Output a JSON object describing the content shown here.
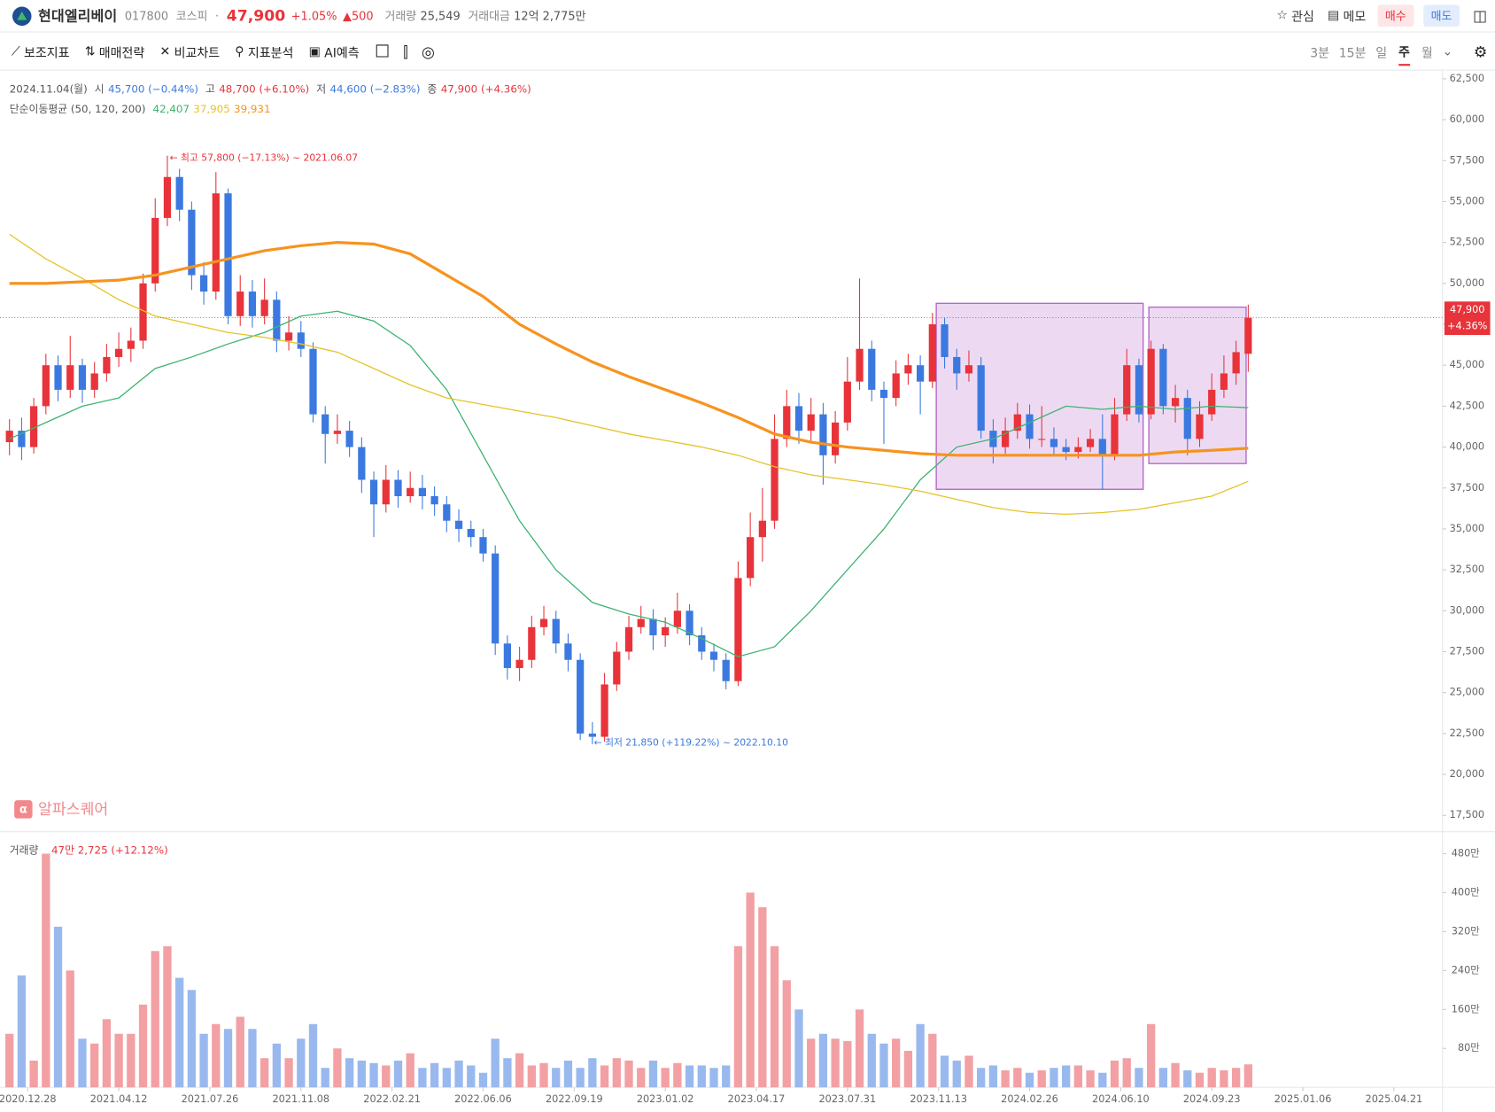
{
  "header": {
    "name": "현대엘리베이",
    "code": "017800",
    "market": "코스피",
    "price": "47,900",
    "change_pct": "+1.05%",
    "change": "▲500",
    "volume_label": "거래량",
    "volume": "25,549",
    "amount_label": "거래대금",
    "amount": "12억 2,775만",
    "actions": [
      "관심",
      "메모",
      "매수",
      "매도"
    ]
  },
  "toolbar": {
    "tools": [
      "보조지표",
      "매매전략",
      "비교차트",
      "지표분석",
      "AI예측"
    ],
    "periods": [
      "3분",
      "15분",
      "일",
      "주",
      "월"
    ]
  },
  "chart_data": {
    "type": "candlestick",
    "info": {
      "date": "2024.11.04(월)",
      "open_label": "시",
      "open": "45,700 (−0.44%)",
      "high_label": "고",
      "high": "48,700 (+6.10%)",
      "low_label": "저",
      "low": "44,600 (−2.83%)",
      "close_label": "종",
      "close": "47,900 (+4.36%)",
      "ma_label": "단순이동평균 (50, 120, 200)"
    },
    "annotations": {
      "max": "← 최고 57,800 (−17.13%) ~ 2021.06.07",
      "min": "← 최저 21,850 (+119.22%) ~ 2022.10.10",
      "watermark": "알파스퀘어"
    },
    "last_price_label": "47,900",
    "last_change_label": "+4.36%",
    "up_color": "#e8333a",
    "down_color": "#3b79e0",
    "grid": false,
    "xlim": [
      -0.78,
      118
    ],
    "xticks": [
      {
        "value": 1.5,
        "label": "2020.12.28"
      },
      {
        "value": 9,
        "label": "2021.04.12"
      },
      {
        "value": 16.5,
        "label": "2021.07.26"
      },
      {
        "value": 24,
        "label": "2021.11.08"
      },
      {
        "value": 31.5,
        "label": "2022.02.21"
      },
      {
        "value": 39,
        "label": "2022.06.06"
      },
      {
        "value": 46.5,
        "label": "2022.09.19"
      },
      {
        "value": 54,
        "label": "2023.01.02"
      },
      {
        "value": 61.5,
        "label": "2023.04.17"
      },
      {
        "value": 69,
        "label": "2023.07.31"
      },
      {
        "value": 76.5,
        "label": "2023.11.13"
      },
      {
        "value": 84,
        "label": "2024.02.26"
      },
      {
        "value": 91.5,
        "label": "2024.06.10"
      },
      {
        "value": 99,
        "label": "2024.09.23"
      },
      {
        "value": 106.5,
        "label": "2025.01.06"
      },
      {
        "value": 114,
        "label": "2025.04.21"
      }
    ],
    "ylim": [
      16500,
      63000
    ],
    "yticks": [
      {
        "value": 17500,
        "label": "17,500"
      },
      {
        "value": 20000,
        "label": "20,000"
      },
      {
        "value": 22500,
        "label": "22,500"
      },
      {
        "value": 25000,
        "label": "25,000"
      },
      {
        "value": 27500,
        "label": "27,500"
      },
      {
        "value": 30000,
        "label": "30,000"
      },
      {
        "value": 32500,
        "label": "32,500"
      },
      {
        "value": 35000,
        "label": "35,000"
      },
      {
        "value": 37500,
        "label": "37,500"
      },
      {
        "value": 40000,
        "label": "40,000"
      },
      {
        "value": 42500,
        "label": "42,500"
      },
      {
        "value": 45000,
        "label": "45,000"
      },
      {
        "value": 47500,
        "label": "47,500"
      },
      {
        "value": 50000,
        "label": "50,000"
      },
      {
        "value": 52500,
        "label": "52,500"
      },
      {
        "value": 55000,
        "label": "55,000"
      },
      {
        "value": 57500,
        "label": "57,500"
      },
      {
        "value": 60000,
        "label": "60,000"
      },
      {
        "value": 62500,
        "label": "62,500"
      }
    ],
    "candles": [
      [
        40300,
        41700,
        39500,
        41000
      ],
      [
        41000,
        41800,
        39200,
        40000
      ],
      [
        40000,
        43000,
        39600,
        42500
      ],
      [
        42500,
        45700,
        42000,
        45000
      ],
      [
        45000,
        45600,
        42800,
        43500
      ],
      [
        43500,
        46800,
        43000,
        45000
      ],
      [
        45000,
        45400,
        42700,
        43500
      ],
      [
        43500,
        45200,
        43000,
        44500
      ],
      [
        44500,
        46300,
        44000,
        45500
      ],
      [
        45500,
        47000,
        44900,
        46000
      ],
      [
        46000,
        47300,
        45200,
        46500
      ],
      [
        46500,
        50600,
        46000,
        50000
      ],
      [
        50000,
        55200,
        49500,
        54000
      ],
      [
        54000,
        57800,
        53500,
        56500
      ],
      [
        56500,
        57000,
        53800,
        54500
      ],
      [
        54500,
        55000,
        49600,
        50500
      ],
      [
        50500,
        51300,
        48700,
        49500
      ],
      [
        49500,
        56800,
        49000,
        55500
      ],
      [
        55500,
        55800,
        47500,
        48000
      ],
      [
        48000,
        50500,
        47400,
        49500
      ],
      [
        49500,
        50200,
        47300,
        48000
      ],
      [
        48000,
        50300,
        47500,
        49000
      ],
      [
        49000,
        49500,
        45800,
        46500
      ],
      [
        46500,
        48000,
        45900,
        47000
      ],
      [
        47000,
        47700,
        45500,
        46000
      ],
      [
        46000,
        46400,
        41500,
        42000
      ],
      [
        42000,
        42500,
        39000,
        40800
      ],
      [
        40800,
        42000,
        40200,
        41000
      ],
      [
        41000,
        41600,
        39400,
        40000
      ],
      [
        40000,
        40600,
        37200,
        38000
      ],
      [
        38000,
        38500,
        34500,
        36500
      ],
      [
        36500,
        38900,
        36000,
        38000
      ],
      [
        38000,
        38600,
        36300,
        37000
      ],
      [
        37000,
        38500,
        36600,
        37500
      ],
      [
        37500,
        38300,
        36200,
        37000
      ],
      [
        37000,
        37600,
        35800,
        36500
      ],
      [
        36500,
        37000,
        34800,
        35500
      ],
      [
        35500,
        36200,
        34200,
        35000
      ],
      [
        35000,
        35500,
        33900,
        34500
      ],
      [
        34500,
        35000,
        33000,
        33500
      ],
      [
        33500,
        34000,
        27300,
        28000
      ],
      [
        28000,
        28500,
        25800,
        26500
      ],
      [
        26500,
        27800,
        25700,
        27000
      ],
      [
        27000,
        29700,
        26500,
        29000
      ],
      [
        29000,
        30300,
        28500,
        29500
      ],
      [
        29500,
        30000,
        27400,
        28000
      ],
      [
        28000,
        28600,
        26300,
        27000
      ],
      [
        27000,
        27400,
        22100,
        22500
      ],
      [
        22500,
        23200,
        21850,
        22300
      ],
      [
        22300,
        26200,
        22000,
        25500
      ],
      [
        25500,
        28100,
        25100,
        27500
      ],
      [
        27500,
        29700,
        27000,
        29000
      ],
      [
        29000,
        30300,
        28600,
        29500
      ],
      [
        29500,
        30100,
        27600,
        28500
      ],
      [
        28500,
        29600,
        27800,
        29000
      ],
      [
        29000,
        31100,
        28600,
        30000
      ],
      [
        30000,
        30400,
        27900,
        28500
      ],
      [
        28500,
        29000,
        27000,
        27500
      ],
      [
        27500,
        28000,
        26300,
        27000
      ],
      [
        27000,
        27400,
        25200,
        25700
      ],
      [
        25700,
        33000,
        25400,
        32000
      ],
      [
        32000,
        36000,
        31500,
        34500
      ],
      [
        34500,
        37500,
        33000,
        35500
      ],
      [
        35500,
        42000,
        35000,
        40500
      ],
      [
        40500,
        43500,
        40000,
        42500
      ],
      [
        42500,
        43300,
        40200,
        41000
      ],
      [
        41000,
        43000,
        40300,
        42000
      ],
      [
        42000,
        42700,
        37700,
        39500
      ],
      [
        39500,
        42200,
        39000,
        41500
      ],
      [
        41500,
        45500,
        41000,
        44000
      ],
      [
        44000,
        50300,
        43500,
        46000
      ],
      [
        46000,
        46500,
        42800,
        43500
      ],
      [
        43500,
        44000,
        40200,
        43000
      ],
      [
        43000,
        45300,
        42500,
        44500
      ],
      [
        44500,
        45700,
        43800,
        45000
      ],
      [
        45000,
        45600,
        42000,
        44000
      ],
      [
        44000,
        48200,
        43600,
        47500
      ],
      [
        47500,
        47900,
        44800,
        45500
      ],
      [
        45500,
        46000,
        43500,
        44500
      ],
      [
        44500,
        45900,
        44000,
        45000
      ],
      [
        45000,
        45500,
        40500,
        41000
      ],
      [
        41000,
        41700,
        39000,
        40000
      ],
      [
        40000,
        41800,
        39600,
        41000
      ],
      [
        41000,
        42700,
        40500,
        42000
      ],
      [
        42000,
        42600,
        39900,
        40500
      ],
      [
        40500,
        42500,
        40000,
        40500
      ],
      [
        40500,
        41200,
        39500,
        40000
      ],
      [
        40000,
        40500,
        39200,
        39700
      ],
      [
        39700,
        40600,
        39300,
        40000
      ],
      [
        40000,
        41100,
        39700,
        40500
      ],
      [
        40500,
        42000,
        37400,
        39500
      ],
      [
        39500,
        43000,
        39200,
        42000
      ],
      [
        42000,
        46000,
        41600,
        45000
      ],
      [
        45000,
        45400,
        41500,
        42000
      ],
      [
        42000,
        46500,
        41700,
        46000
      ],
      [
        46000,
        46300,
        42000,
        42500
      ],
      [
        42500,
        43800,
        41500,
        43000
      ],
      [
        43000,
        43500,
        39500,
        40500
      ],
      [
        40500,
        42800,
        40000,
        42000
      ],
      [
        42000,
        44500,
        41600,
        43500
      ],
      [
        43500,
        45600,
        43000,
        44500
      ],
      [
        44500,
        46500,
        43800,
        45800
      ],
      [
        45700,
        48700,
        44600,
        47900
      ]
    ],
    "ma_series": [
      {
        "name": "50",
        "color": "#3cb371",
        "width": 1.2,
        "legend_label": "42,407",
        "x": [
          0,
          3,
          6,
          9,
          12,
          15,
          18,
          21,
          24,
          27,
          30,
          33,
          36,
          39,
          42,
          45,
          48,
          51,
          54,
          57,
          60,
          63,
          66,
          69,
          72,
          75,
          78,
          81,
          84,
          87,
          90,
          93,
          96,
          99,
          102
        ],
        "values": [
          40500,
          41500,
          42500,
          43000,
          44800,
          45500,
          46300,
          47000,
          48000,
          48300,
          47700,
          46200,
          43500,
          39500,
          35500,
          32500,
          30500,
          29800,
          29300,
          28300,
          27200,
          27800,
          30000,
          32500,
          35000,
          38000,
          40000,
          40500,
          41500,
          42500,
          42300,
          42500,
          42300,
          42500,
          42407
        ]
      },
      {
        "name": "120",
        "color": "#e6c229",
        "width": 1.2,
        "legend_label": "37,905",
        "x": [
          0,
          3,
          6,
          9,
          12,
          15,
          18,
          21,
          24,
          27,
          30,
          33,
          36,
          39,
          42,
          45,
          48,
          51,
          54,
          57,
          60,
          63,
          66,
          69,
          72,
          75,
          78,
          81,
          84,
          87,
          90,
          93,
          96,
          99,
          102
        ],
        "values": [
          53000,
          51500,
          50300,
          49000,
          48000,
          47500,
          47000,
          46700,
          46300,
          45800,
          44800,
          43800,
          43000,
          42600,
          42200,
          41800,
          41300,
          40800,
          40400,
          40000,
          39500,
          38800,
          38300,
          38000,
          37700,
          37300,
          36800,
          36300,
          36000,
          35900,
          36000,
          36200,
          36600,
          37000,
          37905
        ]
      },
      {
        "name": "200",
        "color": "#f7931e",
        "width": 3,
        "legend_label": "39,931",
        "x": [
          0,
          3,
          6,
          9,
          12,
          15,
          18,
          21,
          24,
          27,
          30,
          33,
          36,
          39,
          42,
          45,
          48,
          51,
          54,
          57,
          60,
          63,
          66,
          69,
          72,
          75,
          78,
          81,
          84,
          87,
          90,
          93,
          96,
          99,
          102
        ],
        "values": [
          50000,
          50000,
          50100,
          50200,
          50500,
          51000,
          51500,
          52000,
          52300,
          52500,
          52400,
          51800,
          50500,
          49200,
          47500,
          46300,
          45200,
          44300,
          43500,
          42700,
          41800,
          40800,
          40300,
          40000,
          39800,
          39600,
          39500,
          39500,
          39500,
          39500,
          39500,
          39500,
          39700,
          39800,
          39931
        ]
      }
    ],
    "volume": {
      "title": "거래량",
      "info": "47만 2,725 (+12.12%)",
      "up_color": "#f2a0a4",
      "down_color": "#99b9ee",
      "ylim": [
        0,
        525
      ],
      "yticks": [
        {
          "value": 80,
          "label": "80만"
        },
        {
          "value": 160,
          "label": "160만"
        },
        {
          "value": 240,
          "label": "240만"
        },
        {
          "value": 320,
          "label": "320만"
        },
        {
          "value": 400,
          "label": "400만"
        },
        {
          "value": 480,
          "label": "480만"
        }
      ],
      "values": [
        110,
        230,
        55,
        480,
        330,
        240,
        100,
        90,
        140,
        110,
        110,
        170,
        280,
        290,
        225,
        200,
        110,
        130,
        120,
        145,
        120,
        60,
        90,
        60,
        100,
        130,
        40,
        80,
        60,
        55,
        50,
        45,
        55,
        70,
        40,
        50,
        40,
        55,
        45,
        30,
        100,
        60,
        70,
        45,
        50,
        40,
        55,
        40,
        60,
        45,
        60,
        55,
        40,
        55,
        40,
        50,
        45,
        45,
        40,
        45,
        290,
        400,
        370,
        290,
        220,
        160,
        100,
        110,
        100,
        95,
        160,
        110,
        90,
        100,
        75,
        130,
        110,
        65,
        55,
        65,
        40,
        45,
        35,
        40,
        30,
        35,
        40,
        45,
        45,
        35,
        30,
        55,
        60,
        40,
        130,
        40,
        50,
        35,
        30,
        40,
        35,
        40,
        47.2725
      ]
    }
  }
}
